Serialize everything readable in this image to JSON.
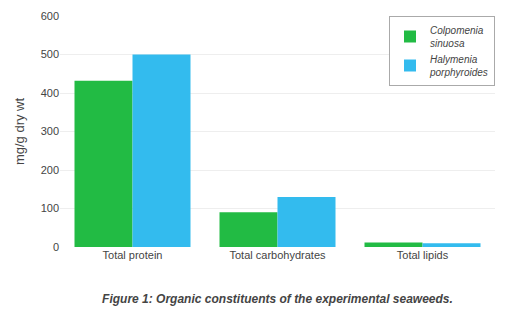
{
  "chart_data": {
    "type": "bar",
    "title": "Figure 1: Organic constituents of the experimental seaweeds.",
    "ylabel": "mg/g dry wt",
    "categories": [
      "Total protein",
      "Total carbohydrates",
      "Total lipids"
    ],
    "series": [
      {
        "name": "Colpomenia\nsinuosa",
        "color": "#22BB44",
        "values": [
          432,
          90,
          12
        ]
      },
      {
        "name": "Halymenia\nporphyroides",
        "color": "#33BBEE",
        "values": [
          500,
          130,
          10
        ]
      }
    ],
    "ylim": [
      0,
      600
    ],
    "yticks": [
      0,
      100,
      200,
      300,
      400,
      500,
      600
    ],
    "grid": true,
    "legend": "upper right"
  }
}
